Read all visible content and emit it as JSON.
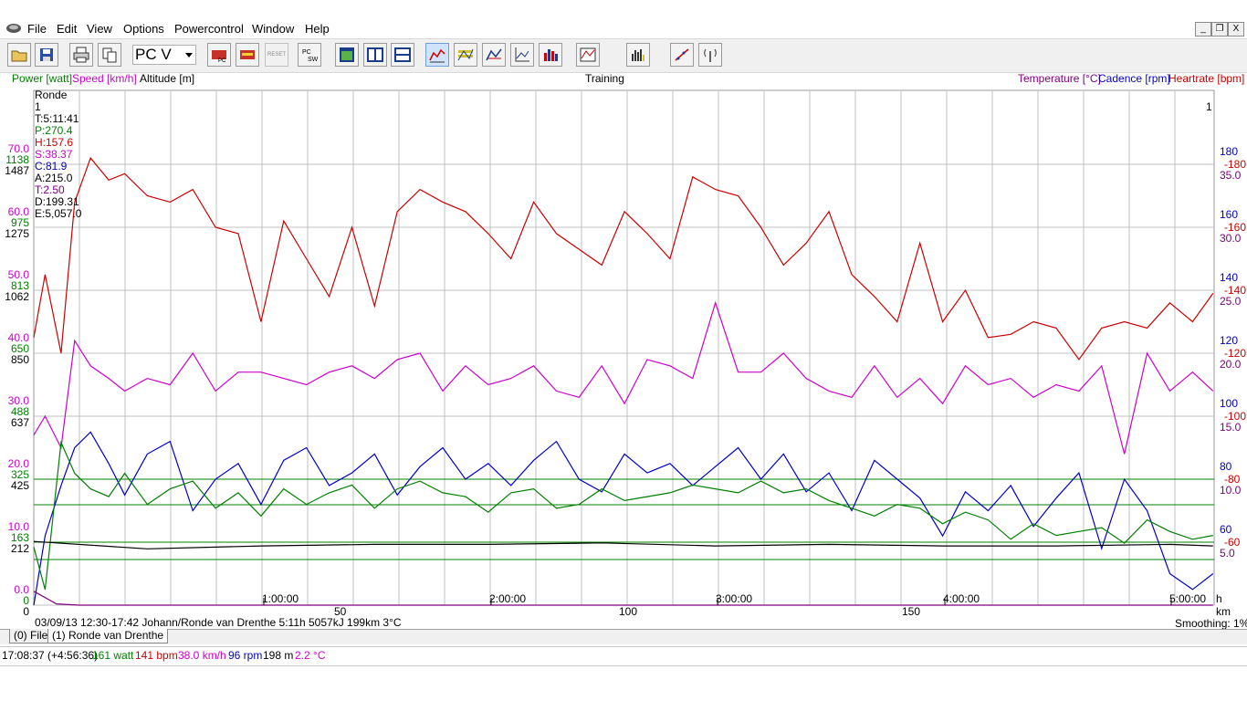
{
  "menu": {
    "items": [
      "File",
      "Edit",
      "View",
      "Options",
      "Powercontrol",
      "Window",
      "Help"
    ]
  },
  "window_controls": [
    "_",
    "❐",
    "X"
  ],
  "toolbar": {
    "device_combo": "PC V",
    "reset_label": "RESET",
    "icons": [
      "open-folder-icon",
      "save-icon",
      "print-icon",
      "copy-icon",
      "download-pc-icon",
      "download-card-icon",
      "reset-icon",
      "pc-sw-icon",
      "window-view-icon",
      "split-vertical-icon",
      "split-horizontal-icon",
      "graph-icon",
      "graph-bars-icon",
      "graph-zones-icon",
      "graph-axes-icon",
      "histogram-icon",
      "graph-table-icon",
      "bar-chart-icon",
      "scatter-icon",
      "antenna-icon"
    ]
  },
  "header": {
    "power": "Power [watt]",
    "speed": "Speed [km/h]",
    "altitude": "Altitude [m]",
    "title": "Training",
    "temperature": "Temperature [°C]",
    "cadence": "Cadence [rpm]",
    "heartrate": "Heartrate [bpm]"
  },
  "info_panel": {
    "name": "Ronde",
    "lap": "1",
    "time": "T:5:11:41",
    "power": "P:270.4",
    "heart": "H:157.6",
    "speed": "S:38.37",
    "cadence": "C:81.9",
    "altitude": "A:215.0",
    "temp": "T:2.50",
    "distance": "D:199.31",
    "energy": "E:5,057.0"
  },
  "right_marker": "1",
  "colors": {
    "power": "#008000",
    "speed": "#cc00cc",
    "altitude": "#000000",
    "temperature": "#800080",
    "cadence": "#0000cc",
    "heartrate": "#cc0000",
    "grid": "#c0c0c0",
    "zone": "#008000"
  },
  "axes": {
    "left": [
      {
        "speed": "70.0",
        "power": "1138",
        "alt": "1487"
      },
      {
        "speed": "60.0",
        "power": "975",
        "alt": "1275"
      },
      {
        "speed": "50.0",
        "power": "813",
        "alt": "1062"
      },
      {
        "speed": "40.0",
        "power": "650",
        "alt": "850"
      },
      {
        "speed": "30.0",
        "power": "488",
        "alt": "637"
      },
      {
        "speed": "20.0",
        "power": "325",
        "alt": "425"
      },
      {
        "speed": "10.0",
        "power": "163",
        "alt": "212"
      },
      {
        "speed": "0.0",
        "power": "0",
        "alt": "0"
      }
    ],
    "right": [
      {
        "cad": "180",
        "hr": "180",
        "temp": "35.0"
      },
      {
        "cad": "160",
        "hr": "160",
        "temp": "30.0"
      },
      {
        "cad": "140",
        "hr": "140",
        "temp": "25.0"
      },
      {
        "cad": "120",
        "hr": "120",
        "temp": "20.0"
      },
      {
        "cad": "100",
        "hr": "100",
        "temp": "15.0"
      },
      {
        "cad": "80",
        "hr": "80",
        "temp": "10.0"
      },
      {
        "cad": "60",
        "hr": "60",
        "temp": "5.0"
      }
    ],
    "time_ticks": [
      "1:00:00",
      "2:00:00",
      "3:00:00",
      "4:00:00",
      "5:00:00"
    ],
    "time_unit": "h",
    "km_ticks": [
      "50",
      "100",
      "150"
    ],
    "km_unit": "km"
  },
  "footer": {
    "ride_info": "03/09/13 12:30-17:42 Johann/Ronde van Drenthe 5:11h 5057kJ 199km 3°C",
    "smoothing": "Smoothing: 1%"
  },
  "tabs": [
    "(0) File",
    "(1) Ronde van Drenthe"
  ],
  "status": {
    "time": "17:08:37 (+4:56:36)",
    "power": "161 watt",
    "heart": "141 bpm",
    "speed": "38.0 km/h",
    "cadence": "96 rpm",
    "altitude": "198 m",
    "temperature": "2.2 °C"
  },
  "chart_data": {
    "type": "line",
    "title": "Training",
    "x_unit": "h",
    "x_range": [
      0,
      5.195
    ],
    "zone_lines_bpm": [
      80,
      60
    ],
    "series": [
      {
        "name": "Heartrate [bpm]",
        "unit": "bpm",
        "range": [
          20,
          200
        ],
        "x": [
          0,
          0.05,
          0.12,
          0.18,
          0.25,
          0.33,
          0.4,
          0.5,
          0.6,
          0.7,
          0.8,
          0.9,
          1.0,
          1.1,
          1.2,
          1.3,
          1.4,
          1.5,
          1.6,
          1.7,
          1.8,
          1.9,
          2.0,
          2.1,
          2.2,
          2.3,
          2.4,
          2.5,
          2.6,
          2.7,
          2.8,
          2.9,
          3.0,
          3.1,
          3.2,
          3.3,
          3.4,
          3.5,
          3.6,
          3.7,
          3.8,
          3.9,
          4.0,
          4.1,
          4.2,
          4.3,
          4.4,
          4.5,
          4.6,
          4.7,
          4.8,
          4.9,
          5.0,
          5.1,
          5.19
        ],
        "values": [
          125,
          145,
          120,
          168,
          182,
          175,
          177,
          170,
          168,
          172,
          160,
          158,
          130,
          162,
          150,
          138,
          160,
          135,
          165,
          172,
          168,
          165,
          158,
          150,
          168,
          158,
          153,
          148,
          165,
          158,
          150,
          176,
          172,
          170,
          160,
          148,
          155,
          165,
          145,
          138,
          130,
          155,
          130,
          140,
          125,
          126,
          130,
          128,
          118,
          128,
          130,
          128,
          136,
          130,
          139
        ]
      },
      {
        "name": "Speed [km/h]",
        "unit": "km/h",
        "range": [
          0,
          80
        ],
        "x": [
          0,
          0.05,
          0.12,
          0.18,
          0.25,
          0.33,
          0.4,
          0.5,
          0.6,
          0.7,
          0.8,
          0.9,
          1.0,
          1.1,
          1.2,
          1.3,
          1.4,
          1.5,
          1.6,
          1.7,
          1.8,
          1.9,
          2.0,
          2.1,
          2.2,
          2.3,
          2.4,
          2.5,
          2.6,
          2.7,
          2.8,
          2.9,
          3.0,
          3.1,
          3.2,
          3.3,
          3.4,
          3.5,
          3.6,
          3.7,
          3.8,
          3.9,
          4.0,
          4.1,
          4.2,
          4.3,
          4.4,
          4.5,
          4.6,
          4.7,
          4.8,
          4.9,
          5.0,
          5.1,
          5.19
        ],
        "values": [
          27,
          30,
          25,
          42,
          38,
          36,
          34,
          36,
          35,
          40,
          34,
          37,
          37,
          36,
          35,
          37,
          38,
          36,
          39,
          40,
          34,
          38,
          35,
          36,
          38,
          34,
          33,
          38,
          32,
          39,
          38,
          36,
          48,
          37,
          37,
          40,
          36,
          34,
          33,
          38,
          33,
          36,
          32,
          38,
          35,
          36,
          33,
          35,
          34,
          38,
          24,
          40,
          34,
          37,
          34
        ]
      },
      {
        "name": "Cadence [rpm]",
        "unit": "rpm",
        "range": [
          20,
          200
        ],
        "x": [
          0,
          0.05,
          0.12,
          0.18,
          0.25,
          0.33,
          0.4,
          0.5,
          0.6,
          0.7,
          0.8,
          0.9,
          1.0,
          1.1,
          1.2,
          1.3,
          1.4,
          1.5,
          1.6,
          1.7,
          1.8,
          1.9,
          2.0,
          2.1,
          2.2,
          2.3,
          2.4,
          2.5,
          2.6,
          2.7,
          2.8,
          2.9,
          3.0,
          3.1,
          3.2,
          3.3,
          3.4,
          3.5,
          3.6,
          3.7,
          3.8,
          3.9,
          4.0,
          4.1,
          4.2,
          4.3,
          4.4,
          4.5,
          4.6,
          4.7,
          4.8,
          4.9,
          5.0,
          5.1,
          5.19
        ],
        "values": [
          40,
          62,
          78,
          90,
          95,
          85,
          75,
          88,
          92,
          70,
          80,
          85,
          72,
          86,
          90,
          78,
          82,
          88,
          75,
          84,
          90,
          80,
          85,
          78,
          86,
          92,
          80,
          76,
          88,
          82,
          85,
          78,
          84,
          90,
          80,
          88,
          76,
          82,
          70,
          86,
          80,
          74,
          62,
          76,
          70,
          78,
          65,
          74,
          82,
          58,
          80,
          70,
          50,
          45,
          50
        ]
      },
      {
        "name": "Power [watt]",
        "unit": "watt",
        "range": [
          0,
          1300
        ],
        "x": [
          0,
          0.05,
          0.12,
          0.18,
          0.25,
          0.33,
          0.4,
          0.5,
          0.6,
          0.7,
          0.8,
          0.9,
          1.0,
          1.1,
          1.2,
          1.3,
          1.4,
          1.5,
          1.6,
          1.7,
          1.8,
          1.9,
          2.0,
          2.1,
          2.2,
          2.3,
          2.4,
          2.5,
          2.6,
          2.7,
          2.8,
          2.9,
          3.0,
          3.1,
          3.2,
          3.3,
          3.4,
          3.5,
          3.6,
          3.7,
          3.8,
          3.9,
          4.0,
          4.1,
          4.2,
          4.3,
          4.4,
          4.5,
          4.6,
          4.7,
          4.8,
          4.9,
          5.0,
          5.1,
          5.19
        ],
        "values": [
          150,
          40,
          420,
          340,
          300,
          280,
          340,
          260,
          300,
          320,
          250,
          290,
          230,
          300,
          260,
          290,
          310,
          250,
          300,
          320,
          290,
          280,
          240,
          290,
          300,
          250,
          260,
          300,
          270,
          280,
          290,
          310,
          300,
          290,
          320,
          290,
          300,
          270,
          250,
          230,
          260,
          250,
          210,
          240,
          220,
          170,
          210,
          180,
          190,
          200,
          160,
          220,
          190,
          170,
          180
        ]
      },
      {
        "name": "Altitude [m]",
        "unit": "m",
        "range": [
          0,
          1700
        ],
        "x": [
          0,
          0.5,
          1.0,
          1.5,
          2.0,
          2.5,
          3.0,
          3.5,
          4.0,
          4.5,
          5.0,
          5.19
        ],
        "values": [
          215,
          190,
          200,
          205,
          205,
          210,
          200,
          205,
          200,
          200,
          205,
          200
        ]
      },
      {
        "name": "Temperature [°C]",
        "unit": "°C",
        "range": [
          0,
          40
        ],
        "x": [
          0,
          0.1,
          0.2,
          0.5,
          1.0,
          1.5,
          2.0,
          2.5,
          3.0,
          3.5,
          4.0,
          4.5,
          5.0,
          5.19
        ],
        "values": [
          4.0,
          3.0,
          2.5,
          2.0,
          2.0,
          1.5,
          1.0,
          1.0,
          1.2,
          1.1,
          1.0,
          1.0,
          1.0,
          0.5
        ]
      }
    ]
  }
}
